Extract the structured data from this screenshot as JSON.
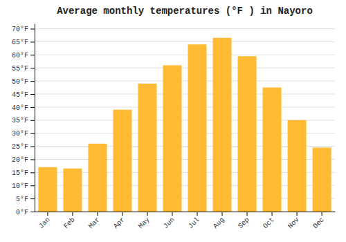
{
  "chart_data": {
    "type": "bar",
    "title": "Average monthly temperatures (°F ) in Nayoro",
    "categories": [
      "Jan",
      "Feb",
      "Mar",
      "Apr",
      "May",
      "Jun",
      "Jul",
      "Aug",
      "Sep",
      "Oct",
      "Nov",
      "Dec"
    ],
    "values": [
      17,
      16.5,
      26,
      39,
      49,
      56,
      64,
      66.5,
      59.5,
      47.5,
      35,
      24.5
    ],
    "color": "#FFBB33",
    "ylim": [
      0,
      72
    ],
    "yticks": [
      {
        "value": 0,
        "label": "0°F"
      },
      {
        "value": 5,
        "label": "5°F"
      },
      {
        "value": 10,
        "label": "10°F"
      },
      {
        "value": 15,
        "label": "15°F"
      },
      {
        "value": 20,
        "label": "20°F"
      },
      {
        "value": 25,
        "label": "25°F"
      },
      {
        "value": 30,
        "label": "30°F"
      },
      {
        "value": 35,
        "label": "35°F"
      },
      {
        "value": 40,
        "label": "40°F"
      },
      {
        "value": 45,
        "label": "45°F"
      },
      {
        "value": 50,
        "label": "50°F"
      },
      {
        "value": 55,
        "label": "55°F"
      },
      {
        "value": 60,
        "label": "60°F"
      },
      {
        "value": 65,
        "label": "65°F"
      },
      {
        "value": 70,
        "label": "70°F"
      }
    ],
    "grid": true
  }
}
